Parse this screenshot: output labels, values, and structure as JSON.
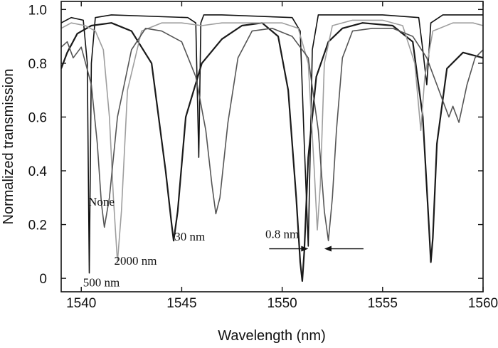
{
  "chart_data": {
    "type": "line",
    "title": "",
    "xlabel": "Wavelength (nm)",
    "ylabel": "Normalized transmission",
    "xlim": [
      1539,
      1560
    ],
    "ylim": [
      -0.05,
      1.03
    ],
    "xticks": [
      1540,
      1545,
      1550,
      1555,
      1560
    ],
    "yticks": [
      0,
      0.2,
      0.4,
      0.6,
      0.8,
      1.0
    ],
    "ytick_labels": [
      "0",
      "0.2",
      "0.4",
      "0.6",
      "0.8",
      "1.0"
    ],
    "grid": false,
    "annotations": [
      {
        "text": "500 nm",
        "x": 1541.0,
        "y": -0.03
      },
      {
        "text": "None",
        "x": 1541.0,
        "y": 0.27
      },
      {
        "text": "2000 nm",
        "x": 1542.7,
        "y": 0.05
      },
      {
        "text": "30 nm",
        "x": 1545.4,
        "y": 0.14
      },
      {
        "text": "0.8 nm",
        "x": 1550.0,
        "y": 0.15
      }
    ],
    "gap_marker": {
      "label": "0.8 nm",
      "x_left": 1551.3,
      "x_right": 1552.1,
      "y": 0.11
    },
    "series": [
      {
        "color": "#111111",
        "width": 1.6,
        "x": [
          1539.0,
          1539.5,
          1540.1,
          1540.3,
          1540.4,
          1540.5,
          1540.7,
          1541.5,
          1545.3,
          1545.7,
          1545.85,
          1545.95,
          1546.1,
          1547.0,
          1550.5,
          1550.9,
          1551.1,
          1551.3,
          1551.5,
          1551.8,
          1555.0,
          1556.8,
          1557.0,
          1557.2,
          1557.4,
          1558.0,
          1560.0
        ],
        "y": [
          0.95,
          0.97,
          0.96,
          0.8,
          0.02,
          0.8,
          0.97,
          0.98,
          0.97,
          0.95,
          0.45,
          0.95,
          0.98,
          0.98,
          0.97,
          0.92,
          0.5,
          0.12,
          0.85,
          0.98,
          0.98,
          0.97,
          0.85,
          0.72,
          0.95,
          0.98,
          0.98
        ]
      },
      {
        "color": "#1a1a1a",
        "width": 2.2,
        "x": [
          1539.0,
          1539.3,
          1539.8,
          1540.5,
          1541.5,
          1542.5,
          1543.5,
          1544.2,
          1544.5,
          1544.6,
          1544.8,
          1545.2,
          1546.0,
          1547.0,
          1548.0,
          1549.0,
          1549.8,
          1550.3,
          1550.7,
          1550.9,
          1551.0,
          1551.1,
          1551.3,
          1551.7,
          1552.3,
          1553.0,
          1554.0,
          1555.5,
          1556.5,
          1557.0,
          1557.3,
          1557.4,
          1557.5,
          1557.7,
          1558.2,
          1559.0,
          1560.0
        ],
        "y": [
          0.78,
          0.84,
          0.91,
          0.94,
          0.95,
          0.92,
          0.8,
          0.4,
          0.2,
          0.14,
          0.25,
          0.6,
          0.8,
          0.89,
          0.94,
          0.95,
          0.9,
          0.7,
          0.3,
          0.06,
          -0.01,
          0.1,
          0.45,
          0.75,
          0.88,
          0.93,
          0.95,
          0.94,
          0.88,
          0.6,
          0.2,
          0.06,
          0.15,
          0.5,
          0.78,
          0.84,
          0.82
        ]
      },
      {
        "color": "#9e9e9e",
        "width": 1.6,
        "x": [
          1539.0,
          1539.5,
          1540.2,
          1540.7,
          1541.1,
          1541.4,
          1541.6,
          1541.8,
          1542.0,
          1542.3,
          1543.0,
          1544.0,
          1545.0,
          1546.0,
          1547.0,
          1548.0,
          1549.0,
          1550.0,
          1550.8,
          1551.3,
          1551.6,
          1551.75,
          1551.9,
          1552.1,
          1552.5,
          1553.5,
          1555.0,
          1556.0,
          1556.6,
          1556.9,
          1557.1,
          1557.5,
          1558.5,
          1559.5,
          1560.0
        ],
        "y": [
          0.93,
          0.95,
          0.94,
          0.92,
          0.85,
          0.6,
          0.3,
          0.06,
          0.25,
          0.7,
          0.92,
          0.95,
          0.95,
          0.94,
          0.95,
          0.95,
          0.95,
          0.95,
          0.93,
          0.8,
          0.4,
          0.18,
          0.35,
          0.8,
          0.94,
          0.96,
          0.96,
          0.94,
          0.8,
          0.55,
          0.75,
          0.92,
          0.95,
          0.95,
          0.94
        ]
      },
      {
        "color": "#555555",
        "width": 1.6,
        "x": [
          1539.0,
          1539.3,
          1539.6,
          1540.0,
          1540.5,
          1540.8,
          1541.0,
          1541.15,
          1541.4,
          1541.8,
          1542.5,
          1543.2,
          1544.0,
          1545.0,
          1545.7,
          1546.2,
          1546.5,
          1546.7,
          1546.9,
          1547.3,
          1547.8,
          1548.5,
          1549.5,
          1550.5,
          1551.3,
          1551.8,
          1552.1,
          1552.3,
          1552.5,
          1552.7,
          1553.0,
          1553.5,
          1554.5,
          1555.5,
          1556.5,
          1557.2,
          1557.7,
          1558.0,
          1558.3,
          1558.5,
          1558.8,
          1559.2,
          1559.6,
          1560.0
        ],
        "y": [
          0.86,
          0.88,
          0.82,
          0.86,
          0.72,
          0.5,
          0.28,
          0.19,
          0.3,
          0.6,
          0.85,
          0.93,
          0.92,
          0.88,
          0.75,
          0.55,
          0.35,
          0.24,
          0.3,
          0.58,
          0.82,
          0.92,
          0.93,
          0.9,
          0.82,
          0.55,
          0.25,
          0.14,
          0.3,
          0.55,
          0.82,
          0.92,
          0.93,
          0.93,
          0.9,
          0.82,
          0.72,
          0.66,
          0.6,
          0.64,
          0.58,
          0.72,
          0.82,
          0.85
        ]
      }
    ]
  }
}
